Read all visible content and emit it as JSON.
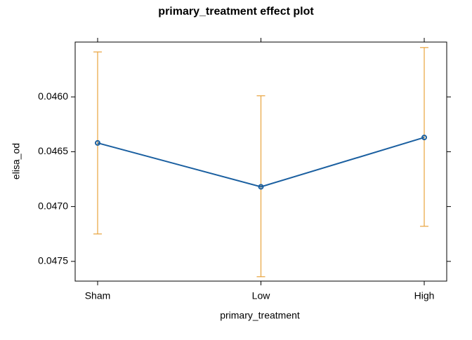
{
  "chart_data": {
    "type": "effect",
    "title": "primary_treatment effect plot",
    "x_label": "primary_treatment",
    "y_label": "elisa_od",
    "categories": [
      "Sham",
      "Low",
      "High"
    ],
    "series": [
      {
        "color": "#1a5fa0",
        "error_color": "#e8a33d",
        "values": [
          0.04642,
          0.04682,
          0.04637
        ],
        "lower": [
          0.04559,
          0.04599,
          0.04555
        ],
        "upper": [
          0.04725,
          0.04764,
          0.04718
        ]
      }
    ],
    "ylim": [
      0.0455,
      0.04768
    ],
    "y_reversed": true,
    "yticks": [
      {
        "value": 0.046,
        "label": "0.0460"
      },
      {
        "value": 0.0465,
        "label": "0.0465"
      },
      {
        "value": 0.047,
        "label": "0.0470"
      },
      {
        "value": 0.0475,
        "label": "0.0475"
      }
    ]
  }
}
